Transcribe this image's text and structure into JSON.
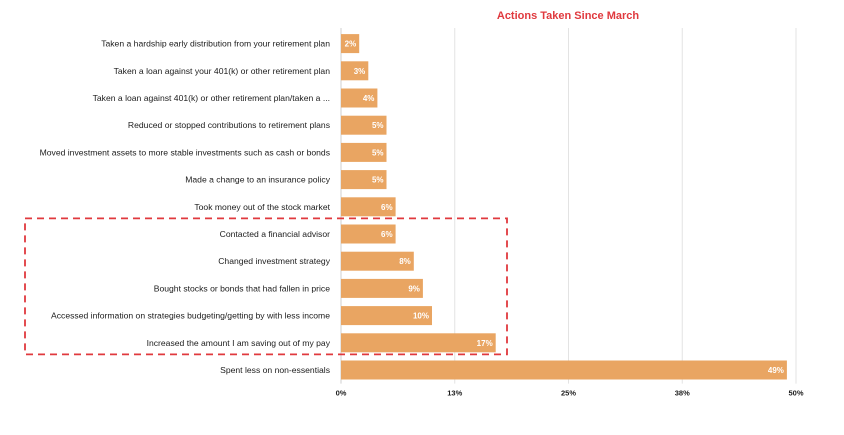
{
  "chart_data": {
    "type": "bar",
    "orientation": "horizontal",
    "title": "Actions Taken Since March",
    "categories": [
      "Taken a hardship early distribution from your retirement plan",
      "Taken a loan against your 401(k) or other retirement plan",
      "Taken a loan against 401(k) or other retirement plan/taken a ...",
      "Reduced or stopped contributions to retirement plans",
      "Moved investment assets to more stable investments such as cash or bonds",
      "Made a change to an insurance policy",
      "Took money out of the stock market",
      "Contacted a financial advisor",
      "Changed investment strategy",
      "Bought stocks or bonds that had fallen in price",
      "Accessed information on strategies budgeting/getting by with less income",
      "Increased the amount I am saving out of my pay",
      "Spent less on non-essentials"
    ],
    "values": [
      2,
      3,
      4,
      5,
      5,
      5,
      6,
      6,
      8,
      9,
      10,
      17,
      49
    ],
    "value_labels": [
      "2%",
      "3%",
      "4%",
      "5%",
      "5%",
      "5%",
      "6%",
      "6%",
      "8%",
      "9%",
      "10%",
      "17%",
      "49%"
    ],
    "xlim": [
      0,
      50
    ],
    "x_ticks": [
      0,
      12.5,
      25,
      37.5,
      50
    ],
    "x_tick_labels": [
      "0%",
      "13%",
      "25%",
      "38%",
      "50%"
    ],
    "grid": true,
    "highlighted_categories": [
      7,
      8,
      9,
      10,
      11
    ],
    "colors": {
      "bar": "#e9a562",
      "title": "#e0393e",
      "highlight_box": "#e0393e",
      "grid": "#e3e3e3"
    }
  }
}
